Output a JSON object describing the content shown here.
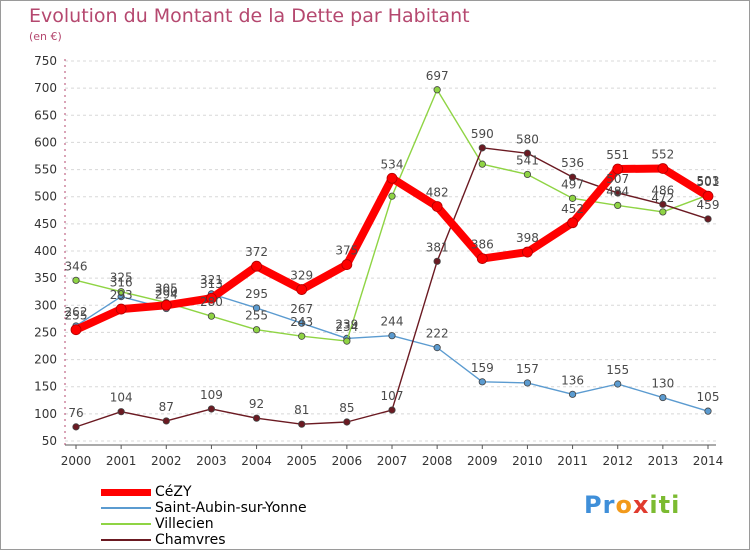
{
  "title": "Evolution du Montant de la Dette par Habitant",
  "subtitle": "(en €)",
  "logo": {
    "letters": [
      "P",
      "r",
      "o",
      "x",
      "i",
      "t",
      "i"
    ],
    "colors": [
      "#3f8fd9",
      "#3f8fd9",
      "#f29a1b",
      "#e03b2e",
      "#7cbb31",
      "#7cbb31",
      "#7cbb31"
    ]
  },
  "chart_data": {
    "type": "line",
    "title": "Evolution du Montant de la Dette par Habitant",
    "ylabel": "(en €)",
    "xlabel": "",
    "x": [
      "2000",
      "2001",
      "2002",
      "2003",
      "2004",
      "2005",
      "2006",
      "2007",
      "2008",
      "2009",
      "2010",
      "2011",
      "2012",
      "2013",
      "2014"
    ],
    "ylim": [
      50,
      750
    ],
    "yticks": [
      50,
      100,
      150,
      200,
      250,
      300,
      350,
      400,
      450,
      500,
      550,
      600,
      650,
      700,
      750
    ],
    "grid": "horizontal dashed",
    "legend_position": "bottom-left",
    "series": [
      {
        "name": "Saint-Aubin-sur-Yonne",
        "color": "#5b9bd0",
        "values": [
          262,
          316,
          294,
          321,
          295,
          267,
          239,
          244,
          222,
          159,
          157,
          136,
          155,
          130,
          105
        ],
        "labels": [
          "262",
          "316",
          "294",
          "321",
          "295",
          "267",
          "239",
          "244",
          "222",
          "159",
          "157",
          "136",
          "155",
          "130",
          "105"
        ]
      },
      {
        "name": "Villecien",
        "color": "#8fd444",
        "values": [
          346,
          325,
          305,
          280,
          255,
          243,
          234,
          501,
          697,
          560,
          541,
          497,
          484,
          472,
          503
        ],
        "labels": [
          "346",
          "325",
          "305",
          "280",
          "255",
          "243",
          "234",
          "",
          "697",
          "",
          "541",
          "497",
          "484",
          "472",
          "503"
        ]
      },
      {
        "name": "Chamvres",
        "color": "#6b1a22",
        "values": [
          76,
          104,
          87,
          109,
          92,
          81,
          85,
          107,
          381,
          590,
          580,
          536,
          507,
          486,
          459
        ],
        "labels": [
          "76",
          "104",
          "87",
          "109",
          "92",
          "81",
          "85",
          "107",
          "381",
          "590",
          "580",
          "536",
          "507",
          "486",
          "459"
        ]
      },
      {
        "name": "CéZY",
        "color": "#ff0000",
        "values": [
          255,
          293,
          300,
          313,
          372,
          329,
          375,
          534,
          482,
          386,
          398,
          452,
          551,
          552,
          501
        ],
        "labels": [
          "255",
          "293",
          "300",
          "313",
          "372",
          "329",
          "375",
          "534",
          "482",
          "386",
          "398",
          "452",
          "551",
          "552",
          "501"
        ]
      }
    ]
  },
  "legend": [
    {
      "label": "CéZY",
      "color": "#ff0000",
      "thick": true
    },
    {
      "label": "Saint-Aubin-sur-Yonne",
      "color": "#5b9bd0",
      "thick": false
    },
    {
      "label": "Villecien",
      "color": "#8fd444",
      "thick": false
    },
    {
      "label": "Chamvres",
      "color": "#6b1a22",
      "thick": false
    }
  ]
}
